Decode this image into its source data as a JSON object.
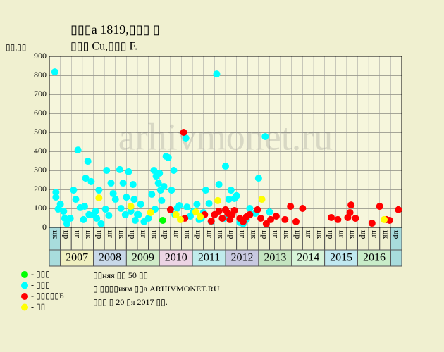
{
  "chart_data": {
    "type": "scatter",
    "title": "▯▯▯а 1819,▯▯▯ ▯",
    "subtitle": "▯▯▯ Cu,▯▯▯ F.",
    "y_label": "▯▯,▯▯",
    "watermark": "arhivmonet.ru",
    "notes": [
      "▯▯няя ▯▯ 50 ▯▯",
      "▯ ▯▯▯▯иям ▯▯а ARHIVMONET.RU",
      "▯▯▯ ▯ 20 ▯я 2017 ▯▯."
    ],
    "ylim": [
      0,
      900
    ],
    "yticks": [
      0,
      100,
      200,
      300,
      400,
      500,
      600,
      700,
      800,
      900
    ],
    "grid": true,
    "xlim": [
      0,
      32
    ],
    "periods": [
      "цк",
      "цр",
      "цг",
      "цк",
      "цр",
      "цг",
      "цк",
      "цр",
      "цг",
      "цк",
      "цр",
      "цг",
      "цк",
      "цр",
      "цг",
      "цк",
      "цр",
      "цг",
      "цк",
      "цр",
      "цг",
      "цк",
      "цр",
      "цг",
      "цк",
      "цр",
      "цг",
      "цк",
      "цр",
      "цг",
      "цк",
      "цр"
    ],
    "years": [
      "2007",
      "2008",
      "2009",
      "2010",
      "2011",
      "2012",
      "2013",
      "2014",
      "2015",
      "2016"
    ],
    "year_colors": [
      "#f0f0c0",
      "#c8d8e8",
      "#d0ecc8",
      "#ecd4e4",
      "#c0ecec",
      "#c8c8e0",
      "#c4e4c0",
      "#d8f4d8",
      "#c0e8f0",
      "#c8ecc8"
    ],
    "series": [
      {
        "name": "- ▯▯▯",
        "color": "#00ff00",
        "x": [
          10.3
        ],
        "values": [
          37
        ]
      },
      {
        "name": "- ▯▯▯",
        "color": "#00ffff",
        "x": [
          0.5,
          0.6,
          0.6,
          0.8,
          1.0,
          1.3,
          1.4,
          1.6,
          1.9,
          2.2,
          2.4,
          2.6,
          2.8,
          3.1,
          3.2,
          3.3,
          3.5,
          3.6,
          3.8,
          4.0,
          4.2,
          4.3,
          4.5,
          4.7,
          5.1,
          5.2,
          5.4,
          5.6,
          5.8,
          6.0,
          6.4,
          6.5,
          6.7,
          6.9,
          7.0,
          7.2,
          7.4,
          7.6,
          7.7,
          7.8,
          8.0,
          8.1,
          8.3,
          8.6,
          9.0,
          9.3,
          9.5,
          9.6,
          9.7,
          9.9,
          10.0,
          10.1,
          10.2,
          10.4,
          10.6,
          10.8,
          11.1,
          11.3,
          11.4,
          11.6,
          11.8,
          12.4,
          12.5,
          12.8,
          13.1,
          13.4,
          13.6,
          13.8,
          14.0,
          14.2,
          14.5,
          14.7,
          15.2,
          15.4,
          15.9,
          16.0,
          16.3,
          16.5,
          16.8,
          17.0,
          17.3,
          17.6,
          17.9,
          18.2,
          18.7,
          19.0,
          19.6,
          20.0
        ],
        "values": [
          818,
          185,
          159,
          96,
          122,
          85,
          48,
          19,
          48,
          196,
          148,
          407,
          104,
          41,
          111,
          259,
          348,
          67,
          241,
          67,
          85,
          48,
          196,
          19,
          96,
          300,
          63,
          233,
          178,
          148,
          304,
          100,
          233,
          67,
          159,
          293,
          85,
          226,
          148,
          37,
          67,
          67,
          122,
          30,
          48,
          174,
          300,
          96,
          270,
          233,
          285,
          196,
          141,
          215,
          374,
          367,
          196,
          300,
          67,
          100,
          115,
          470,
          107,
          59,
          85,
          122,
          41,
          48,
          78,
          196,
          126,
          30,
          807,
          226,
          48,
          322,
          148,
          196,
          152,
          167,
          26,
          19,
          41,
          100,
          74,
          259,
          478,
          81
        ]
      },
      {
        "name": "- ▯▯▯▯▯Б",
        "color": "#ff0000",
        "x": [
          12.2,
          11.0,
          12.3,
          14.1,
          14.7,
          15.0,
          15.4,
          15.7,
          16.0,
          16.2,
          16.4,
          16.6,
          16.8,
          17.3,
          17.6,
          17.9,
          18.2,
          18.9,
          19.2,
          19.7,
          20.1,
          20.6,
          21.4,
          21.9,
          22.4,
          23.0,
          25.6,
          26.2,
          27.1,
          27.3,
          27.4,
          27.8,
          29.3,
          30.0,
          30.6,
          30.9,
          31.7
        ],
        "values": [
          500,
          93,
          48,
          67,
          33,
          67,
          85,
          48,
          93,
          74,
          41,
          67,
          89,
          48,
          30,
          56,
          67,
          93,
          48,
          19,
          41,
          59,
          41,
          111,
          30,
          100,
          52,
          41,
          52,
          78,
          118,
          48,
          22,
          111,
          41,
          37,
          93
        ]
      },
      {
        "name": "- ▯▯",
        "color": "#ffff00",
        "x": [
          4.5,
          7.4,
          9.2,
          11.5,
          11.9,
          13.3,
          13.7,
          15.3,
          19.3,
          30.4
        ],
        "values": [
          155,
          111,
          78,
          67,
          41,
          81,
          56,
          141,
          148,
          41
        ]
      }
    ]
  }
}
